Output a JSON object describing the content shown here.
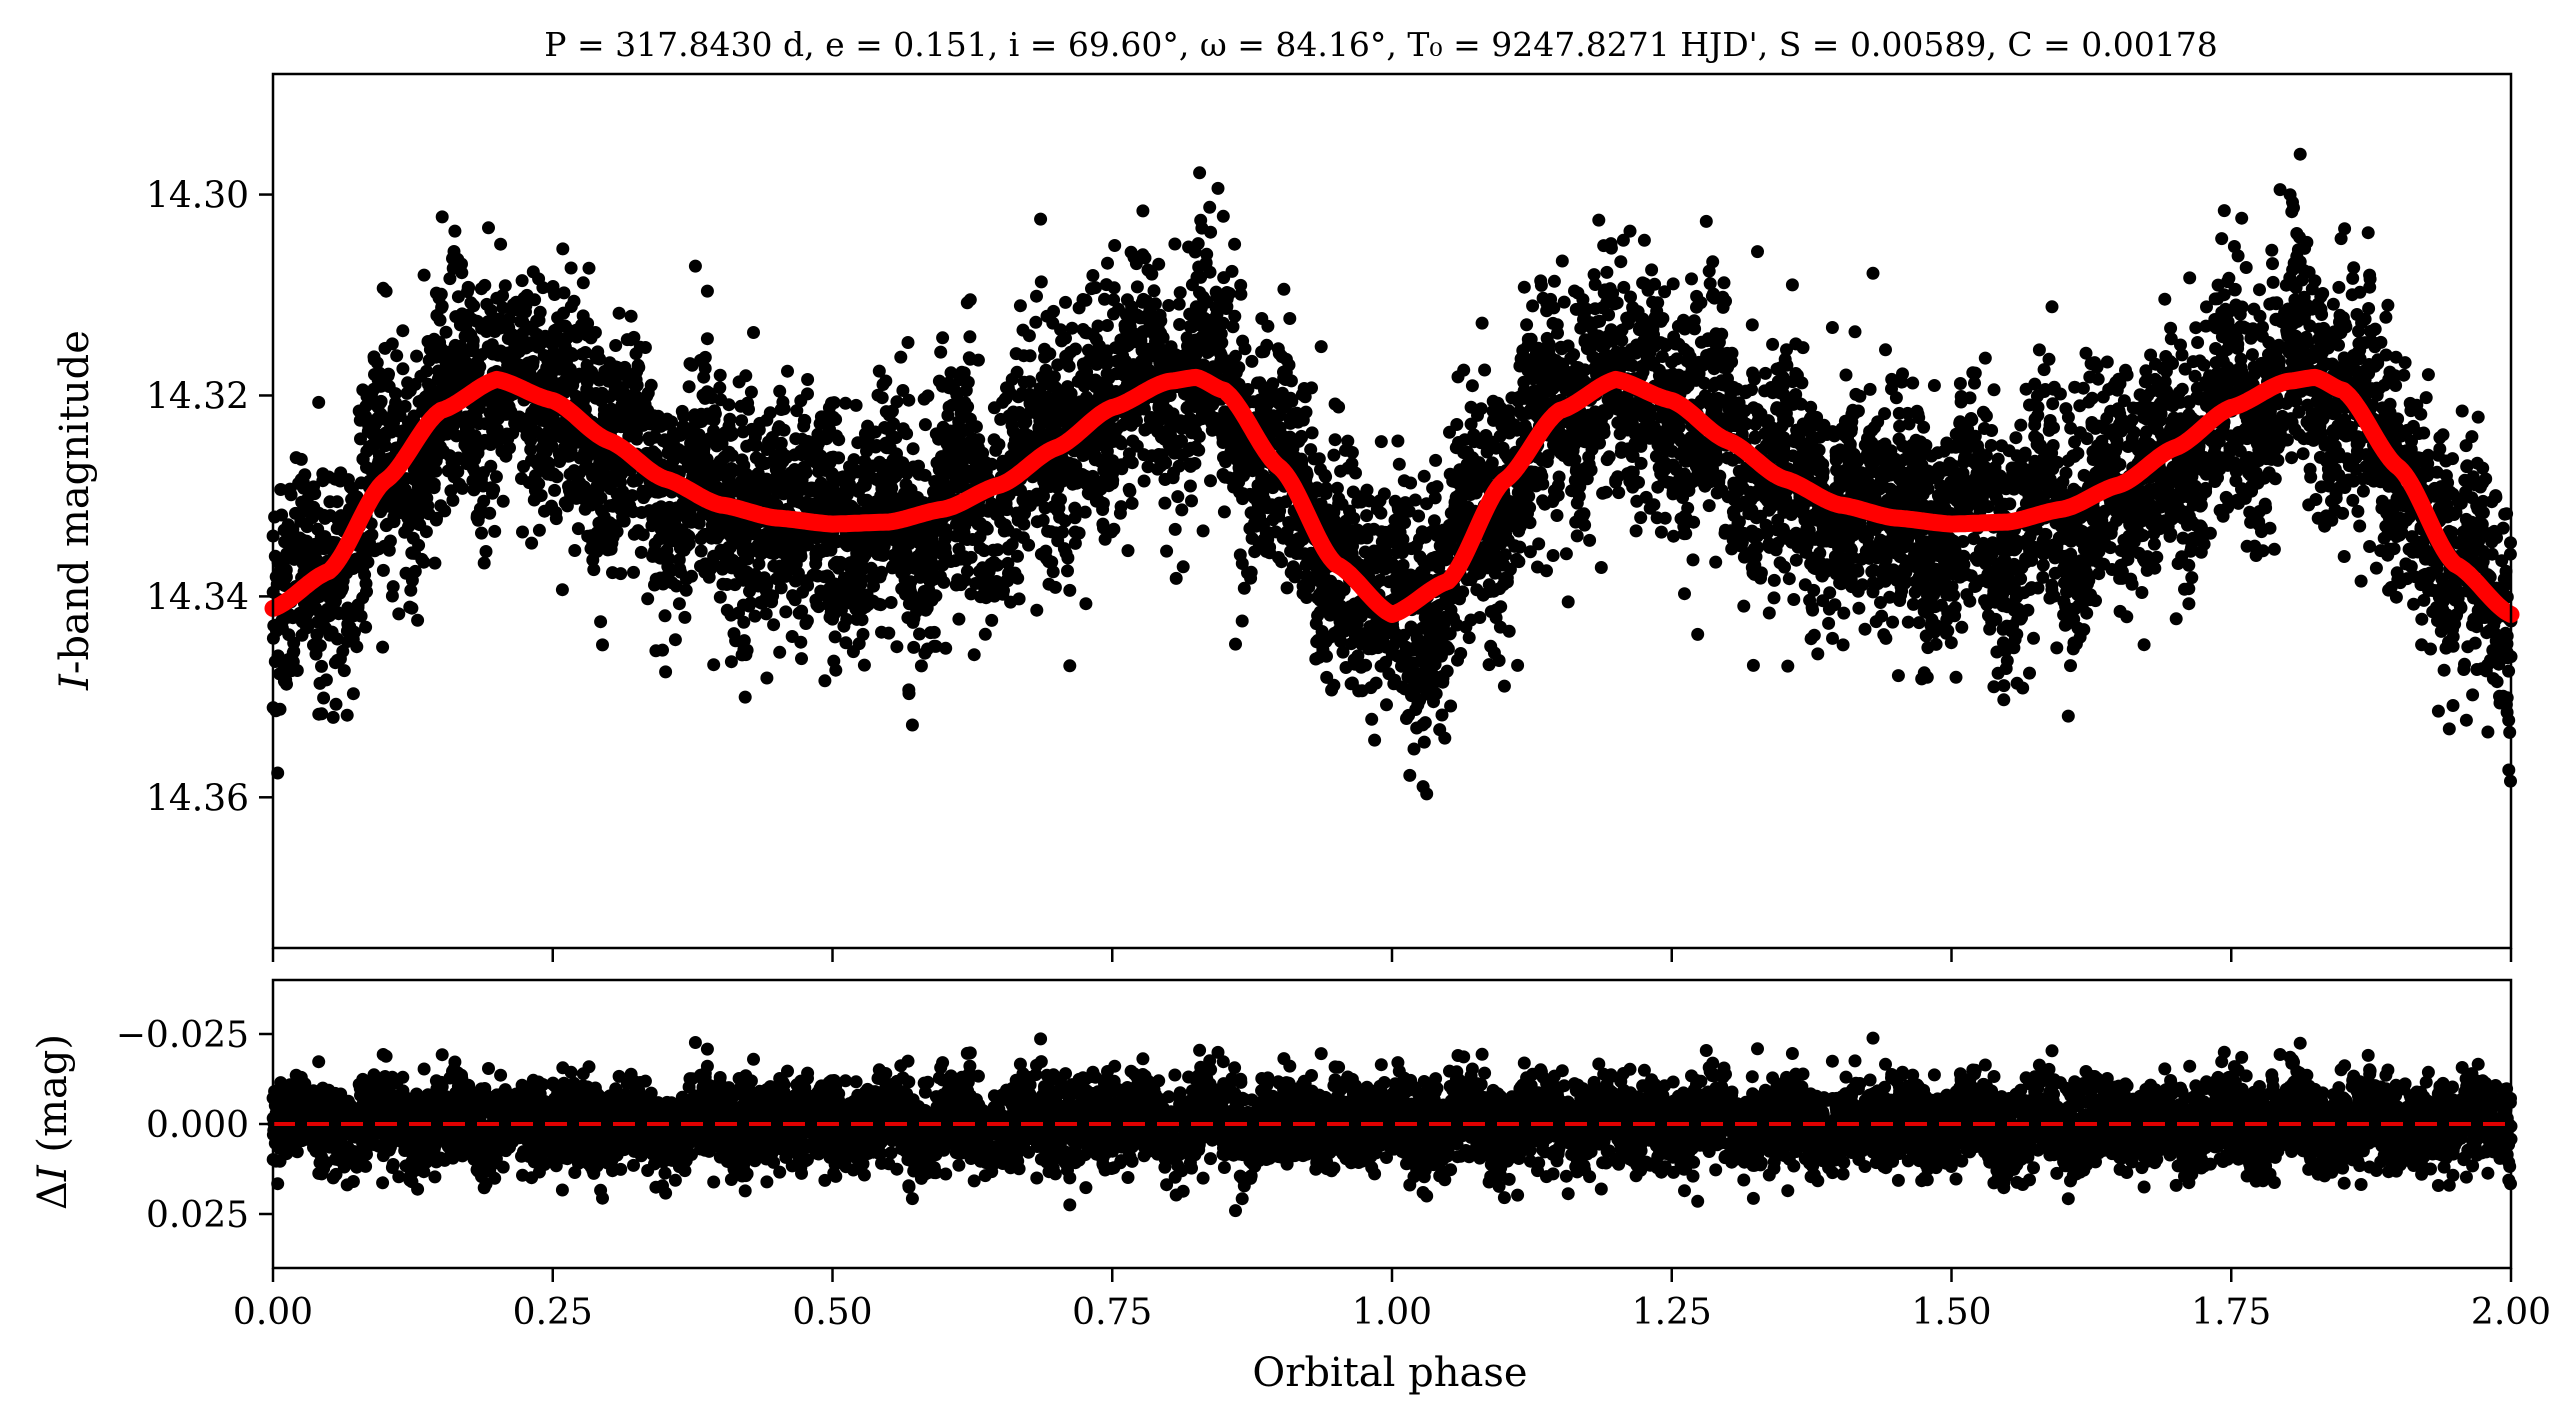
{
  "chart_data": [
    {
      "type": "scatter",
      "title": "P = 317.8430 d, e = 0.151, i = 69.60°, ω = 84.16°, T₀ = 9247.8271 HJD', S = 0.00589, C = 0.00178",
      "xlabel": "",
      "ylabel": "I-band magnitude",
      "xlim": [
        0.0,
        2.0
      ],
      "ylim": [
        14.375,
        14.288
      ],
      "y_inverted": true,
      "yticks": [
        "14.30",
        "14.32",
        "14.34",
        "14.36"
      ],
      "ytick_values": [
        14.3,
        14.32,
        14.34,
        14.36
      ],
      "xticks_unlabeled": [
        0.0,
        0.25,
        0.5,
        0.75,
        1.0,
        1.25,
        1.5,
        1.75,
        2.0
      ],
      "grid": false,
      "series": [
        {
          "kind": "scatter",
          "color": "#000000",
          "approx_points": 9000,
          "x_range": [
            0.0,
            2.0
          ],
          "scatter_sigma_mag": 0.0075
        },
        {
          "kind": "model-line",
          "color": "#ff0000",
          "x": [
            0.0,
            0.05,
            0.1,
            0.15,
            0.2,
            0.25,
            0.3,
            0.35,
            0.4,
            0.45,
            0.5,
            0.55,
            0.6,
            0.65,
            0.7,
            0.75,
            0.8,
            0.825,
            0.85,
            0.9,
            0.95,
            1.0,
            1.05,
            1.1,
            1.15,
            1.2,
            1.25,
            1.3,
            1.35,
            1.4,
            1.45,
            1.5,
            1.55,
            1.6,
            1.65,
            1.7,
            1.75,
            1.8,
            1.825,
            1.85,
            1.9,
            1.95,
            2.0
          ],
          "y": [
            14.3412,
            14.3375,
            14.3285,
            14.3215,
            14.3184,
            14.3205,
            14.3245,
            14.3283,
            14.3309,
            14.3322,
            14.3328,
            14.3326,
            14.3313,
            14.3289,
            14.3252,
            14.3212,
            14.3186,
            14.3182,
            14.3195,
            14.3272,
            14.3368,
            14.3418,
            14.3385,
            14.3285,
            14.3215,
            14.3184,
            14.3205,
            14.3245,
            14.3283,
            14.3309,
            14.3322,
            14.3328,
            14.3326,
            14.3313,
            14.3289,
            14.3252,
            14.3212,
            14.3186,
            14.3182,
            14.3195,
            14.3272,
            14.3368,
            14.3418
          ]
        }
      ]
    },
    {
      "type": "scatter",
      "title": "",
      "xlabel": "Orbital phase",
      "ylabel": "ΔI (mag)",
      "xlim": [
        0.0,
        2.0
      ],
      "ylim": [
        0.04,
        -0.04
      ],
      "y_inverted": true,
      "yticks": [
        "−0.025",
        "0.000",
        "0.025"
      ],
      "ytick_values": [
        -0.025,
        0.0,
        0.025
      ],
      "xticks": [
        "0.00",
        "0.25",
        "0.50",
        "0.75",
        "1.00",
        "1.25",
        "1.50",
        "1.75",
        "2.00"
      ],
      "xtick_values": [
        0.0,
        0.25,
        0.5,
        0.75,
        1.0,
        1.25,
        1.5,
        1.75,
        2.0
      ],
      "grid": false,
      "series": [
        {
          "kind": "scatter",
          "color": "#000000",
          "approx_points": 9000,
          "x_range": [
            0.0,
            2.0
          ],
          "scatter_sigma_mag": 0.0075
        },
        {
          "kind": "reference-line",
          "style": "dashed",
          "color": "#e00000",
          "y": 0.0
        }
      ]
    }
  ]
}
